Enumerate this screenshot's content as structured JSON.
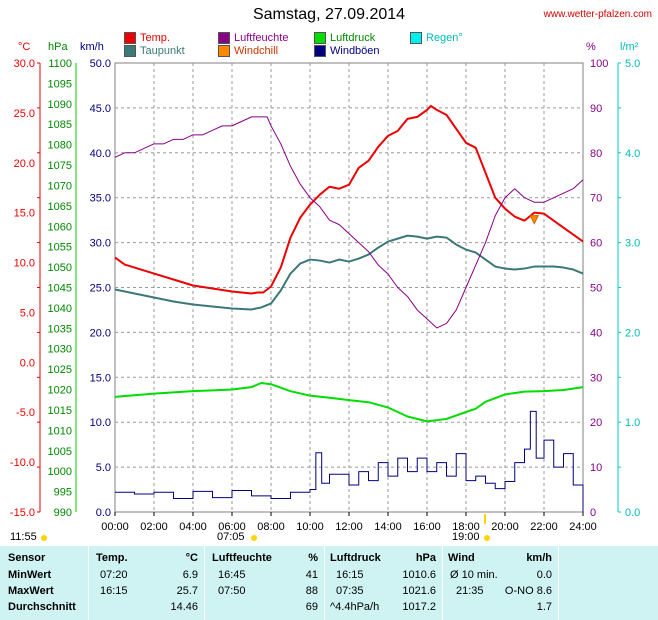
{
  "header": {
    "title": "Samstag, 27.09.2014",
    "site": "www.wetter-pfalzen.com"
  },
  "legend": [
    {
      "label": "Temp.",
      "color": "#ee0000"
    },
    {
      "label": "Taupunkt",
      "color": "#3c7878"
    },
    {
      "label": "Luftfeuchte",
      "color": "#880088"
    },
    {
      "label": "Windchill",
      "color": "#ff8800"
    },
    {
      "label": "Luftdruck",
      "color": "#00dd00"
    },
    {
      "label": "Windböen",
      "color": "#000080"
    },
    {
      "label": "Regen°",
      "color": "#00f0f0"
    }
  ],
  "units": {
    "temp": "°C",
    "pressure": "hPa",
    "wind": "km/h",
    "humidity": "%",
    "rain": "l/m²"
  },
  "sun": {
    "sunrise": "07:05",
    "sunset": "19:00",
    "daylength": "11:55"
  },
  "chart_data": {
    "type": "line",
    "x_ticks": [
      "00:00",
      "02:00",
      "04:00",
      "06:00",
      "08:00",
      "10:00",
      "12:00",
      "14:00",
      "16:00",
      "18:00",
      "20:00",
      "22:00",
      "24:00"
    ],
    "axes": {
      "temp": {
        "min": -15.0,
        "max": 30.0,
        "ticks": [
          "30.0",
          "25.0",
          "20.0",
          "15.0",
          "10.0",
          "5.0",
          "0.0",
          "-5.0",
          "-10.0",
          "-15.0"
        ]
      },
      "pressure": {
        "min": 990,
        "max": 1100,
        "ticks": [
          "1100",
          "1095",
          "1090",
          "1085",
          "1080",
          "1075",
          "1070",
          "1065",
          "1060",
          "1055",
          "1050",
          "1045",
          "1040",
          "1035",
          "1030",
          "1025",
          "1020",
          "1015",
          "1010",
          "1005",
          "1000",
          "995",
          "990"
        ]
      },
      "wind": {
        "min": 0.0,
        "max": 50.0,
        "ticks": [
          "50.0",
          "45.0",
          "40.0",
          "35.0",
          "30.0",
          "25.0",
          "20.0",
          "15.0",
          "10.0",
          "5.0",
          "0.0"
        ]
      },
      "humidity": {
        "min": 0,
        "max": 100,
        "ticks": [
          "100",
          "90",
          "80",
          "70",
          "60",
          "50",
          "40",
          "30",
          "20",
          "10",
          "0"
        ]
      },
      "rain": {
        "min": 0.0,
        "max": 5.0,
        "ticks": [
          "5.0",
          "4.0",
          "3.0",
          "2.0",
          "1.0",
          "0.0"
        ]
      }
    },
    "series": [
      {
        "name": "Temp.",
        "color": "#ee0000",
        "axis": "temp",
        "x": [
          0,
          0.5,
          1,
          2,
          3,
          4,
          5,
          6,
          6.5,
          7,
          7.3,
          7.6,
          8,
          8.5,
          9,
          9.5,
          10,
          10.5,
          11,
          11.5,
          12,
          12.5,
          13,
          13.5,
          14,
          14.5,
          15,
          15.5,
          16,
          16.2,
          16.5,
          17,
          17.5,
          18,
          18.5,
          19,
          19.5,
          20,
          20.5,
          21,
          21.5,
          22,
          22.5,
          23,
          23.5,
          24
        ],
        "y": [
          10.5,
          9.8,
          9.5,
          8.9,
          8.3,
          7.7,
          7.4,
          7.1,
          7.0,
          6.9,
          7.0,
          7.0,
          7.6,
          9.5,
          12.5,
          14.5,
          15.8,
          16.8,
          17.6,
          17.4,
          17.8,
          19.5,
          20.2,
          21.6,
          22.7,
          23.2,
          24.4,
          24.6,
          25.3,
          25.7,
          25.3,
          24.8,
          23.4,
          22.0,
          21.5,
          19.0,
          16.5,
          15.4,
          14.6,
          14.2,
          15.0,
          14.9,
          14.2,
          13.5,
          12.8,
          12.1
        ]
      },
      {
        "name": "Taupunkt",
        "color": "#3c7878",
        "axis": "temp",
        "x": [
          0,
          1,
          2,
          3,
          4,
          5,
          6,
          7,
          7.5,
          8,
          8.5,
          9,
          9.5,
          10,
          10.5,
          11,
          11.5,
          12,
          12.5,
          13,
          13.5,
          14,
          14.5,
          15,
          15.5,
          16,
          16.5,
          17,
          17.5,
          18,
          18.5,
          19,
          19.5,
          20,
          20.5,
          21,
          21.5,
          22,
          22.5,
          23,
          23.5,
          24
        ],
        "y": [
          7.3,
          6.9,
          6.5,
          6.1,
          5.8,
          5.6,
          5.4,
          5.3,
          5.5,
          5.9,
          7.2,
          8.9,
          9.9,
          10.3,
          10.2,
          10.0,
          10.3,
          10.1,
          10.4,
          10.8,
          11.5,
          12.1,
          12.4,
          12.7,
          12.6,
          12.4,
          12.6,
          12.5,
          11.8,
          11.3,
          11.0,
          10.3,
          9.6,
          9.4,
          9.3,
          9.4,
          9.6,
          9.6,
          9.6,
          9.5,
          9.3,
          8.9
        ]
      },
      {
        "name": "Luftfeuchte",
        "color": "#880088",
        "axis": "humidity",
        "x": [
          0,
          0.5,
          1,
          1.5,
          2,
          2.5,
          3,
          3.5,
          4,
          4.5,
          5,
          5.5,
          6,
          6.5,
          7,
          7.5,
          7.8,
          8,
          8.5,
          9,
          9.5,
          10,
          10.5,
          11,
          11.5,
          12,
          12.5,
          13,
          13.5,
          14,
          14.5,
          15,
          15.5,
          16,
          16.5,
          17,
          17.5,
          18,
          18.5,
          19,
          19.5,
          20,
          20.5,
          21,
          21.5,
          22,
          22.5,
          23,
          23.5,
          24
        ],
        "y": [
          79,
          80,
          80,
          81,
          82,
          82,
          83,
          83,
          84,
          84,
          85,
          86,
          86,
          87,
          88,
          88,
          88,
          86,
          82,
          77,
          73,
          70,
          68,
          65,
          64,
          62,
          60,
          58,
          55,
          53,
          50,
          48,
          45,
          43,
          41,
          42,
          45,
          50,
          55,
          60,
          66,
          70,
          72,
          70,
          69,
          69,
          70,
          71,
          72,
          74
        ]
      },
      {
        "name": "Luftdruck",
        "color": "#00dd00",
        "axis": "pressure",
        "x": [
          0,
          1,
          2,
          3,
          4,
          5,
          6,
          7,
          7.5,
          8,
          9,
          10,
          11,
          12,
          13,
          14,
          15,
          16,
          17,
          18,
          18.5,
          19,
          20,
          21,
          22,
          23,
          24
        ],
        "y": [
          1018.2,
          1018.6,
          1019.0,
          1019.3,
          1019.6,
          1019.8,
          1020.0,
          1020.6,
          1021.6,
          1021.3,
          1019.6,
          1018.5,
          1018.0,
          1017.4,
          1016.9,
          1015.6,
          1013.4,
          1012.2,
          1012.8,
          1014.5,
          1015.3,
          1017.0,
          1018.8,
          1019.5,
          1019.6,
          1019.9,
          1020.6
        ]
      }
    ],
    "wind_gusts": {
      "name": "Windböen",
      "color": "#000080",
      "axis": "wind",
      "x": [
        0,
        1,
        2,
        3,
        4,
        5,
        6,
        7,
        8,
        9,
        10,
        10.3,
        10.6,
        11,
        12,
        12.5,
        13,
        13.5,
        14,
        14.5,
        15,
        15.5,
        16,
        16.5,
        17,
        17.5,
        18,
        18.5,
        19,
        19.5,
        20,
        20.5,
        21,
        21.3,
        21.6,
        22,
        22.5,
        23,
        23.5,
        24
      ],
      "y": [
        2.2,
        2.0,
        2.2,
        1.5,
        2.3,
        1.6,
        2.4,
        1.8,
        1.5,
        2.2,
        2.5,
        6.6,
        3.2,
        4.2,
        3.0,
        4.5,
        3.5,
        5.5,
        4.0,
        6.0,
        4.5,
        6.0,
        4.5,
        5.5,
        4.0,
        6.5,
        3.5,
        4.0,
        3.2,
        2.6,
        3.4,
        5.5,
        7.0,
        11.2,
        6.0,
        8.0,
        5.0,
        6.5,
        3.0,
        0.0
      ]
    },
    "windchill_marker": {
      "x": 21.5,
      "y": 14.3
    }
  },
  "stats": {
    "headers": {
      "sensor": "Sensor",
      "temp": "Temp.",
      "temp_unit": "°C",
      "hum": "Luftfeuchte",
      "hum_unit": "%",
      "pres": "Luftdruck",
      "pres_unit": "hPa",
      "wind": "Wind",
      "wind_unit": "km/h"
    },
    "rows": [
      {
        "label": "MinWert",
        "t_time": "07:20",
        "t_val": "6.9",
        "h_time": "16:45",
        "h_val": "41",
        "p_time": "16:15",
        "p_val": "1010.6",
        "w_time": "Ø 10 min.",
        "w_val": "0.0"
      },
      {
        "label": "MaxWert",
        "t_time": "16:15",
        "t_val": "25.7",
        "h_time": "07:50",
        "h_val": "88",
        "p_time": "07:35",
        "p_val": "1021.6",
        "w_time": "21:35",
        "w_val": "O-NO 8.6"
      },
      {
        "label": "Durchschnitt",
        "t_time": "",
        "t_val": "14.46",
        "h_time": "",
        "h_val": "69",
        "p_time": "^4.4hPa/h",
        "p_val": "1017.2",
        "w_time": "",
        "w_val": "1.7"
      }
    ]
  }
}
